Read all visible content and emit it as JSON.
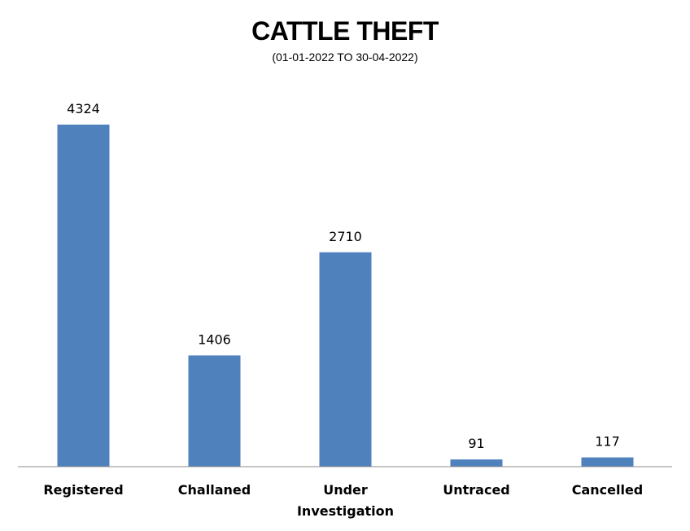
{
  "chart_data": {
    "type": "bar",
    "title": "CATTLE THEFT",
    "subtitle": "(01-01-2022 TO 30-04-2022)",
    "categories": [
      "Registered",
      "Challaned",
      "Under Investigation",
      "Untraced",
      "Cancelled"
    ],
    "category_lines": [
      [
        "Registered"
      ],
      [
        "Challaned"
      ],
      [
        "Under",
        "Investigation"
      ],
      [
        "Untraced"
      ],
      [
        "Cancelled"
      ]
    ],
    "values": [
      4324,
      1406,
      2710,
      91,
      117
    ],
    "xlabel": "",
    "ylabel": "",
    "ylim": [
      0,
      4324
    ],
    "grid": false,
    "legend": "none",
    "bar_color": "#4F81BD",
    "axis_color": "#8C8C8C"
  }
}
